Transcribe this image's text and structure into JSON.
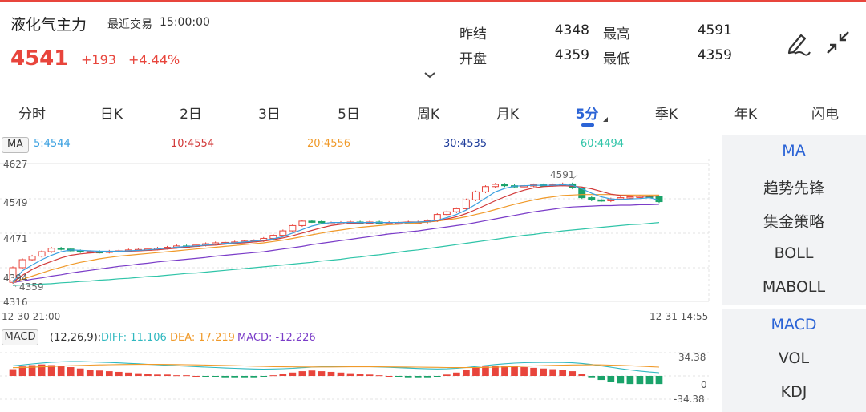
{
  "header": {
    "title": "液化气主力",
    "trade_label": "最近交易",
    "trade_time": "15:00:00",
    "price": "4541",
    "change": "+193",
    "change_pct": "+4.44%"
  },
  "stats": {
    "prev_close_label": "昨结",
    "prev_close": "4348",
    "high_label": "最高",
    "high": "4591",
    "open_label": "开盘",
    "open": "4359",
    "low_label": "最低",
    "low": "4359"
  },
  "icons": {
    "draw": "pen-icon",
    "collapse": "collapse-arrows-icon",
    "expand": "chevron-down-icon"
  },
  "tabs": [
    "分时",
    "日K",
    "2日",
    "3日",
    "5日",
    "周K",
    "月K",
    "5分",
    "季K",
    "年K",
    "闪电"
  ],
  "active_tab": "5分",
  "ma_legend": {
    "badge": "MA",
    "ma5": "5:4544",
    "ma10": "10:4554",
    "ma20": "20:4556",
    "ma30": "30:4535",
    "ma60": "60:4494"
  },
  "price_axis": {
    "tick_4627": "4627",
    "tick_4549": "4549",
    "tick_4471": "4471",
    "tick_4394": "4394",
    "tick_4316": "4316",
    "low_label": "4359",
    "high_label": "4591"
  },
  "time_axis": {
    "start": "12-30 21:00",
    "end": "12-31 14:55"
  },
  "macd": {
    "badge": "MACD",
    "params": "(12,26,9):",
    "diff": "DIFF: 11.106",
    "dea": "DEA: 17.219",
    "macd_val": "MACD: -12.226",
    "axis_top": "34.38",
    "axis_zero": "0",
    "axis_bottom": "-34.38"
  },
  "right_panel": {
    "main_indicators": [
      "MA",
      "趋势先锋",
      "集金策略",
      "BOLL",
      "MABOLL"
    ],
    "sub_indicators": [
      "MACD",
      "VOL",
      "KDJ"
    ],
    "active_main": "MA",
    "active_sub": "MACD"
  },
  "colors": {
    "up": "#e8453c",
    "down": "#1aa36a",
    "accent": "#2c64d6",
    "ma5": "#3aa0e0",
    "ma10": "#d23a3a",
    "ma20": "#f09a2a",
    "ma30": "#7a3cc8",
    "ma60": "#2fc4a8"
  },
  "chart_data": {
    "type": "candlestick",
    "ylim": [
      4316,
      4627
    ],
    "open": [
      4359,
      4392,
      4410,
      4418,
      4428,
      4436,
      4434,
      4430,
      4428,
      4428,
      4427,
      4429,
      4430,
      4432,
      4433,
      4434,
      4436,
      4438,
      4441,
      4440,
      4443,
      4446,
      4448,
      4449,
      4450,
      4452,
      4453,
      4458,
      4465,
      4475,
      4487,
      4497,
      4496,
      4493,
      4493,
      4494,
      4495,
      4494,
      4495,
      4494,
      4494,
      4494,
      4495,
      4495,
      4498,
      4512,
      4518,
      4525,
      4545,
      4563,
      4575,
      4580,
      4577,
      4576,
      4577,
      4579,
      4578,
      4579,
      4581,
      4572,
      4550,
      4545,
      4543,
      4547,
      4550,
      4552,
      4553,
      4552
    ],
    "close": [
      4392,
      4410,
      4418,
      4428,
      4436,
      4434,
      4430,
      4428,
      4428,
      4427,
      4429,
      4430,
      4432,
      4433,
      4434,
      4436,
      4438,
      4441,
      4440,
      4443,
      4446,
      4448,
      4449,
      4450,
      4452,
      4453,
      4458,
      4465,
      4475,
      4487,
      4497,
      4496,
      4493,
      4493,
      4494,
      4495,
      4494,
      4495,
      4494,
      4494,
      4494,
      4495,
      4495,
      4498,
      4512,
      4518,
      4525,
      4545,
      4563,
      4575,
      4580,
      4577,
      4576,
      4577,
      4579,
      4578,
      4579,
      4581,
      4572,
      4550,
      4545,
      4543,
      4547,
      4550,
      4552,
      4553,
      4552,
      4541
    ],
    "ma5": [
      4359,
      4385,
      4398,
      4410,
      4420,
      4428,
      4432,
      4431,
      4430,
      4429,
      4429,
      4429,
      4430,
      4431,
      4432,
      4434,
      4436,
      4438,
      4440,
      4441,
      4443,
      4445,
      4447,
      4448,
      4450,
      4452,
      4454,
      4457,
      4462,
      4470,
      4478,
      4486,
      4491,
      4494,
      4494,
      4494,
      4494,
      4494,
      4494,
      4494,
      4494,
      4494,
      4495,
      4496,
      4499,
      4505,
      4512,
      4522,
      4535,
      4549,
      4563,
      4571,
      4576,
      4577,
      4578,
      4578,
      4578,
      4579,
      4578,
      4570,
      4560,
      4552,
      4547,
      4546,
      4547,
      4548,
      4550,
      4544
    ],
    "ma10": [
      4359,
      4375,
      4388,
      4398,
      4406,
      4414,
      4420,
      4423,
      4425,
      4427,
      4428,
      4428,
      4429,
      4430,
      4431,
      4432,
      4434,
      4436,
      4438,
      4440,
      4442,
      4443,
      4445,
      4447,
      4448,
      4450,
      4452,
      4455,
      4459,
      4464,
      4470,
      4476,
      4482,
      4487,
      4490,
      4492,
      4493,
      4494,
      4494,
      4494,
      4494,
      4495,
      4495,
      4496,
      4498,
      4502,
      4507,
      4514,
      4523,
      4533,
      4543,
      4552,
      4560,
      4567,
      4572,
      4575,
      4576,
      4577,
      4576,
      4574,
      4570,
      4564,
      4558,
      4555,
      4554,
      4553,
      4553,
      4554
    ],
    "ma20": [
      4359,
      4366,
      4373,
      4380,
      4387,
      4393,
      4399,
      4404,
      4408,
      4412,
      4415,
      4418,
      4420,
      4422,
      4424,
      4426,
      4428,
      4430,
      4432,
      4434,
      4436,
      4438,
      4440,
      4442,
      4444,
      4446,
      4448,
      4451,
      4454,
      4458,
      4462,
      4466,
      4470,
      4474,
      4477,
      4480,
      4483,
      4485,
      4487,
      4489,
      4490,
      4492,
      4493,
      4495,
      4497,
      4500,
      4503,
      4507,
      4512,
      4517,
      4523,
      4529,
      4535,
      4540,
      4545,
      4549,
      4552,
      4555,
      4556,
      4557,
      4557,
      4557,
      4557,
      4556,
      4556,
      4556,
      4556,
      4556
    ],
    "ma30": [
      4359,
      4362,
      4366,
      4369,
      4373,
      4376,
      4380,
      4383,
      4386,
      4389,
      4392,
      4395,
      4397,
      4400,
      4402,
      4405,
      4407,
      4409,
      4411,
      4413,
      4415,
      4418,
      4420,
      4422,
      4424,
      4426,
      4428,
      4431,
      4434,
      4437,
      4440,
      4444,
      4447,
      4450,
      4453,
      4456,
      4459,
      4462,
      4465,
      4468,
      4470,
      4473,
      4475,
      4478,
      4481,
      4484,
      4487,
      4490,
      4494,
      4498,
      4502,
      4506,
      4510,
      4514,
      4518,
      4521,
      4524,
      4527,
      4529,
      4530,
      4531,
      4532,
      4532,
      4533,
      4533,
      4534,
      4534,
      4535
    ],
    "ma60": [
      4352,
      4353,
      4354,
      4355,
      4356,
      4358,
      4359,
      4361,
      4362,
      4364,
      4365,
      4367,
      4368,
      4370,
      4372,
      4373,
      4375,
      4377,
      4379,
      4380,
      4382,
      4384,
      4386,
      4388,
      4390,
      4392,
      4394,
      4396,
      4398,
      4400,
      4402,
      4404,
      4407,
      4409,
      4411,
      4414,
      4416,
      4419,
      4421,
      4424,
      4427,
      4430,
      4432,
      4435,
      4438,
      4441,
      4444,
      4447,
      4450,
      4453,
      4456,
      4459,
      4462,
      4465,
      4467,
      4470,
      4472,
      4475,
      4477,
      4479,
      4481,
      4483,
      4485,
      4487,
      4489,
      4490,
      4492,
      4494
    ],
    "macd_hist": [
      10,
      14,
      16,
      17,
      16,
      15,
      13,
      11,
      9,
      8,
      7,
      6,
      5,
      4,
      3,
      2,
      2,
      1,
      1,
      0,
      -1,
      -1,
      -2,
      -2,
      -2,
      -2,
      -1,
      1,
      3,
      5,
      7,
      8,
      7,
      6,
      5,
      4,
      3,
      2,
      1,
      0,
      -1,
      -2,
      -2,
      -2,
      -1,
      2,
      5,
      9,
      12,
      14,
      15,
      15,
      14,
      13,
      12,
      11,
      10,
      9,
      7,
      3,
      -2,
      -6,
      -9,
      -11,
      -12,
      -12,
      -12,
      -12
    ],
    "macd_ylim": [
      -34.38,
      34.38
    ]
  }
}
